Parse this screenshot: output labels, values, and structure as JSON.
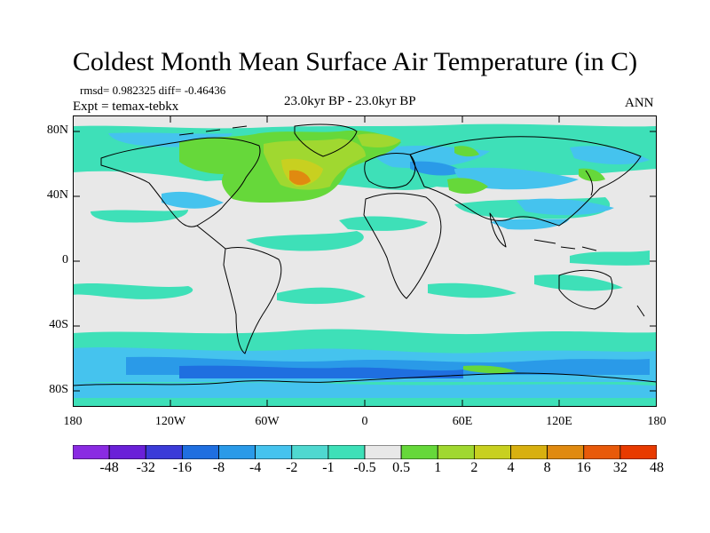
{
  "title": "Coldest Month Mean Surface Air Temperature (in C)",
  "stats": "rmsd= 0.982325  diff= -0.46436",
  "expt": "Expt = temax-tebkx",
  "period": "23.0kyr BP - 23.0kyr BP",
  "season": "ANN",
  "lat_ticks": [
    "80N",
    "40N",
    "0",
    "40S",
    "80S"
  ],
  "lon_ticks": [
    "180",
    "120W",
    "60W",
    "0",
    "60E",
    "120E",
    "180"
  ],
  "colorbar": {
    "labels": [
      "-48",
      "-32",
      "-16",
      "-8",
      "-4",
      "-2",
      "-1",
      "-0.5",
      "0.5",
      "1",
      "2",
      "4",
      "8",
      "16",
      "32",
      "48"
    ],
    "colors": [
      "#8a2be2",
      "#6a20d8",
      "#3b3bd8",
      "#1f6fe0",
      "#2a9ae8",
      "#45c3ee",
      "#4fd8d0",
      "#3ee0b8",
      "#e8e8e8",
      "#66d83a",
      "#a0d830",
      "#c8d020",
      "#d8b010",
      "#e08a10",
      "#e85a0a",
      "#e83a00"
    ]
  },
  "icon_names": [
    "world-coastline-map"
  ]
}
